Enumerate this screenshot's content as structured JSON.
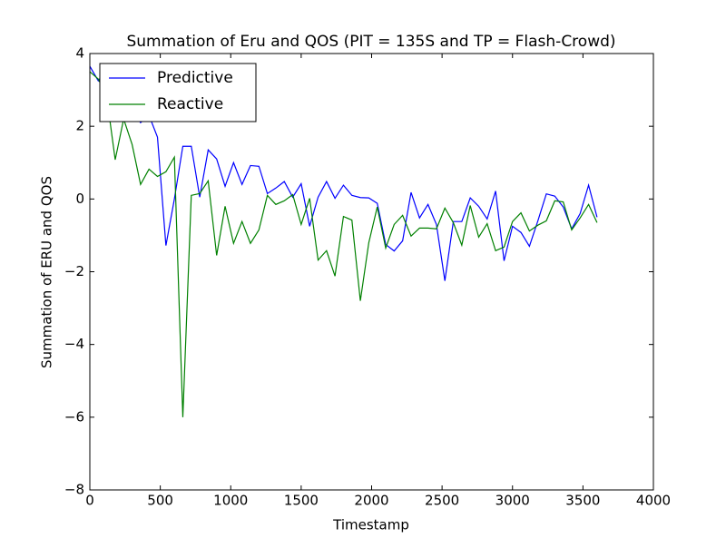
{
  "chart_data": {
    "type": "line",
    "title": "Summation of Eru and QOS (PIT = 135S and TP = Flash-Crowd)",
    "xlabel": "Timestamp",
    "ylabel": "Summation of ERU and QOS",
    "x": [
      0,
      60,
      120,
      180,
      240,
      300,
      360,
      420,
      480,
      540,
      600,
      660,
      720,
      780,
      840,
      900,
      960,
      1020,
      1080,
      1140,
      1200,
      1260,
      1320,
      1380,
      1440,
      1500,
      1560,
      1620,
      1680,
      1740,
      1800,
      1860,
      1920,
      1980,
      2040,
      2100,
      2160,
      2220,
      2280,
      2340,
      2400,
      2460,
      2520,
      2580,
      2640,
      2700,
      2760,
      2820,
      2880,
      2940,
      3000,
      3060,
      3120,
      3180,
      3240,
      3300,
      3360,
      3420,
      3480,
      3540,
      3600
    ],
    "series": [
      {
        "name": "Predictive",
        "color": "#0000ff",
        "values": [
          3.65,
          3.25,
          3.6,
          3.0,
          2.6,
          2.5,
          2.1,
          2.3,
          1.7,
          -1.28,
          0.0,
          1.45,
          1.45,
          0.05,
          1.35,
          1.1,
          0.35,
          1.0,
          0.4,
          0.92,
          0.9,
          0.15,
          0.3,
          0.48,
          0.05,
          0.42,
          -0.75,
          0.05,
          0.48,
          0.02,
          0.38,
          0.1,
          0.04,
          0.03,
          -0.12,
          -1.25,
          -1.43,
          -1.15,
          0.18,
          -0.52,
          -0.15,
          -0.7,
          -2.25,
          -0.62,
          -0.62,
          0.03,
          -0.2,
          -0.55,
          0.22,
          -1.7,
          -0.75,
          -0.92,
          -1.3,
          -0.6,
          0.14,
          0.08,
          -0.22,
          -0.82,
          -0.4,
          0.38,
          -0.5
        ]
      },
      {
        "name": "Reactive",
        "color": "#008000",
        "values": [
          3.5,
          3.3,
          2.8,
          1.08,
          2.2,
          1.5,
          0.4,
          0.82,
          0.62,
          0.75,
          1.15,
          -6.0,
          0.1,
          0.15,
          0.5,
          -1.55,
          -0.2,
          -1.22,
          -0.62,
          -1.22,
          -0.85,
          0.1,
          -0.15,
          -0.05,
          0.12,
          -0.7,
          0.02,
          -1.68,
          -1.42,
          -2.12,
          -0.48,
          -0.58,
          -2.8,
          -1.2,
          -0.22,
          -1.35,
          -0.7,
          -0.45,
          -1.02,
          -0.8,
          -0.8,
          -0.82,
          -0.25,
          -0.65,
          -1.27,
          -0.18,
          -1.05,
          -0.68,
          -1.42,
          -1.32,
          -0.62,
          -0.38,
          -0.88,
          -0.72,
          -0.6,
          -0.05,
          -0.08,
          -0.85,
          -0.52,
          -0.15,
          -0.65
        ]
      }
    ],
    "xlim": [
      0,
      4000
    ],
    "xticks": [
      0,
      500,
      1000,
      1500,
      2000,
      2500,
      3000,
      3500,
      4000
    ],
    "ylim": [
      -8,
      4
    ],
    "yticks": [
      {
        "value": -8,
        "label": "−8"
      },
      {
        "value": -6,
        "label": "−6"
      },
      {
        "value": -4,
        "label": "−4"
      },
      {
        "value": -2,
        "label": "−2"
      },
      0,
      2,
      4
    ],
    "legend": "upper left",
    "grid": false
  }
}
